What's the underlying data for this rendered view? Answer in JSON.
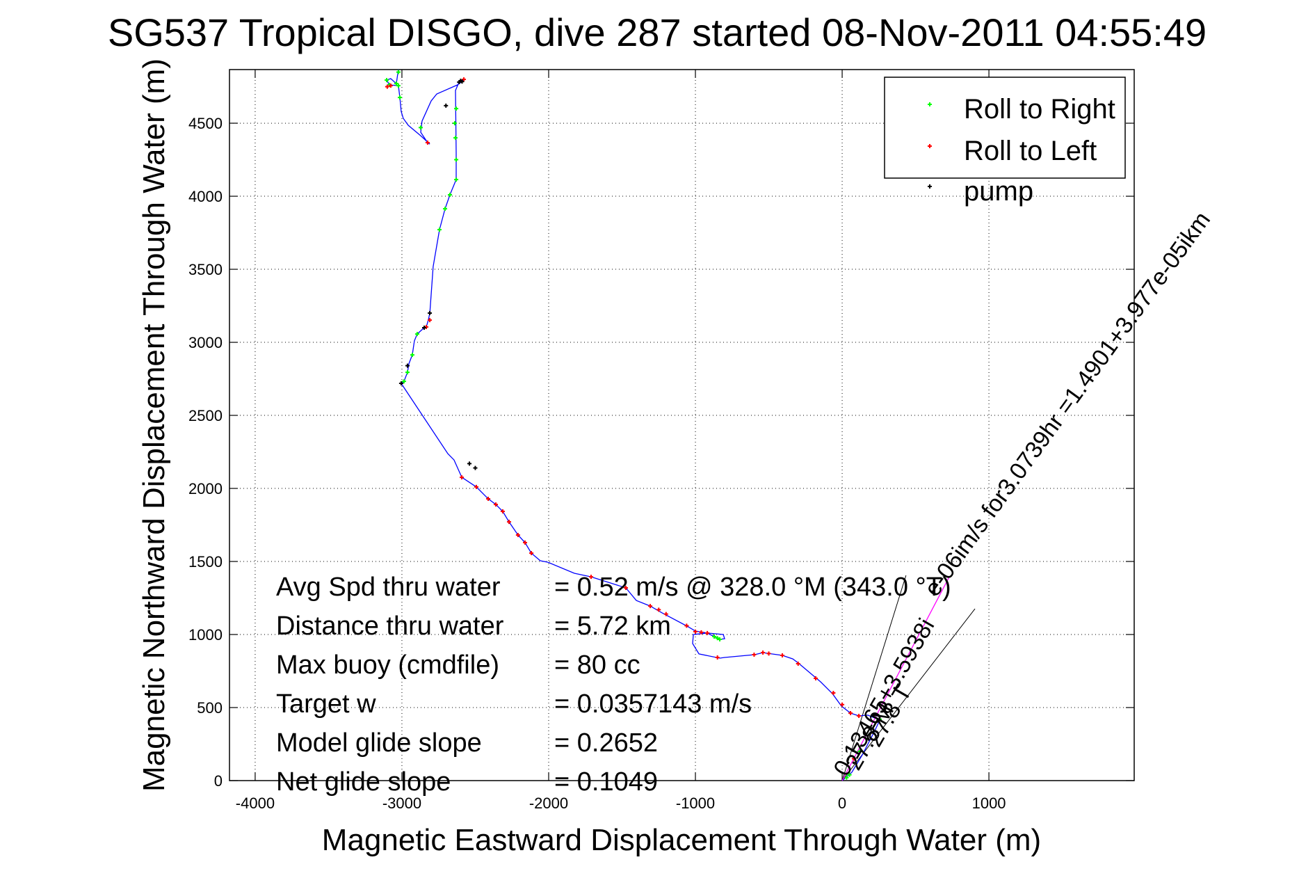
{
  "chart_data": {
    "type": "line",
    "title": "SG537 Tropical DISGO, dive 287 started 08-Nov-2011 04:55:49",
    "xlabel": "Magnetic Eastward Displacement Through Water (m)",
    "ylabel": "Magnetic Northward Displacement Through Water (m)",
    "xlim": [
      -4175,
      1990
    ],
    "ylim": [
      0,
      4867
    ],
    "grid": true,
    "xticks": [
      -4000,
      -3000,
      -2000,
      -1000,
      0,
      1000
    ],
    "yticks": [
      0,
      500,
      1000,
      1500,
      2000,
      2500,
      3000,
      3500,
      4000,
      4500
    ],
    "legend": {
      "placement": "top-right",
      "entries": [
        {
          "label": "Roll to Right",
          "color": "#00ff00",
          "marker": "+"
        },
        {
          "label": "Roll to Left",
          "color": "#ff0000",
          "marker": "+"
        },
        {
          "label": "pump",
          "color": "#000000",
          "marker": "+"
        }
      ]
    },
    "series": [
      {
        "name": "track",
        "color": "#0000ff",
        "x": [
          0,
          66,
          137,
          223,
          256,
          175,
          114,
          57,
          -5,
          -66,
          -147,
          -299,
          -336,
          -408,
          -540,
          -597,
          -801,
          -834,
          -976,
          -1019,
          -1014,
          -919,
          -810,
          -801,
          -834,
          -872,
          -919,
          -1000,
          -1057,
          -1227,
          -1308,
          -1403,
          -1474,
          -1711,
          -1825,
          -2005,
          -2057,
          -2118,
          -2161,
          -2209,
          -2270,
          -2313,
          -2360,
          -2412,
          -2493,
          -2592,
          -2645,
          -2687,
          -3005,
          -2986,
          -2962,
          -2953,
          -2929,
          -2915,
          -2896,
          -2848,
          -2834,
          -2820,
          -2810,
          -2787,
          -2744,
          -2706,
          -2673,
          -2630,
          -2630,
          -2635,
          -2611,
          -2578,
          -2621,
          -2763,
          -2801,
          -2863,
          -2872,
          -2825,
          -2810,
          -2872,
          -2957,
          -2991,
          -3005,
          -3014,
          -3024,
          -3085,
          -3104,
          -3076,
          -3038,
          -3024
        ],
        "y": [
          0,
          57,
          176,
          343,
          414,
          448,
          443,
          462,
          510,
          595,
          676,
          805,
          833,
          857,
          876,
          862,
          843,
          838,
          867,
          938,
          1000,
          1010,
          1000,
          971,
          967,
          986,
          1010,
          1024,
          1057,
          1148,
          1195,
          1233,
          1319,
          1395,
          1419,
          1495,
          1505,
          1557,
          1629,
          1681,
          1771,
          1843,
          1890,
          1929,
          2010,
          2076,
          2195,
          2238,
          2719,
          2733,
          2795,
          2852,
          2914,
          3010,
          3057,
          3100,
          3105,
          3152,
          3200,
          3519,
          3771,
          3914,
          4010,
          4114,
          4295,
          4724,
          4781,
          4795,
          4762,
          4700,
          4652,
          4514,
          4438,
          4367,
          4357,
          4414,
          4486,
          4533,
          4581,
          4676,
          4757,
          4762,
          4795,
          4805,
          4771,
          4867
        ]
      },
      {
        "name": "Roll to Right",
        "color": "#00ff00",
        "x": [
          30,
          50,
          256,
          120,
          -834,
          -850,
          -872,
          -2986,
          -2962,
          -2929,
          -2896,
          -2630,
          -2630,
          -2635,
          -2640,
          -2673,
          -2706,
          -2744,
          -2630,
          -3014,
          -3024,
          -3085,
          -3104,
          -3038,
          -3024,
          -2872
        ],
        "y": [
          20,
          40,
          420,
          200,
          967,
          975,
          986,
          2733,
          2795,
          2914,
          3057,
          4114,
          4250,
          4400,
          4500,
          4010,
          3914,
          3771,
          4600,
          4676,
          4757,
          4762,
          4795,
          4771,
          4850,
          4470
        ]
      },
      {
        "name": "Roll to Left",
        "color": "#ff0000",
        "x": [
          80,
          114,
          57,
          0,
          -60,
          -180,
          -300,
          -408,
          -500,
          -540,
          -600,
          -850,
          -919,
          -960,
          -1000,
          -1060,
          -1200,
          -1250,
          -1308,
          -1474,
          -1711,
          -2118,
          -2161,
          -2209,
          -2270,
          -2313,
          -2360,
          -2412,
          -2493,
          -2592,
          -2848,
          -2834,
          -2810,
          -2825,
          -2578,
          -3076,
          -3100
        ],
        "y": [
          150,
          443,
          462,
          520,
          600,
          700,
          800,
          857,
          870,
          876,
          862,
          843,
          1010,
          1015,
          1020,
          1060,
          1140,
          1170,
          1195,
          1319,
          1395,
          1557,
          1629,
          1681,
          1771,
          1843,
          1890,
          1929,
          2010,
          2076,
          3100,
          3105,
          3152,
          4367,
          4800,
          4757,
          4750
        ]
      },
      {
        "name": "pump",
        "color": "#000000",
        "x": [
          -2610,
          -2540,
          -2500,
          -2848,
          -2810,
          -3005,
          -2962,
          -2600,
          -2700,
          -2590
        ],
        "y": [
          4781,
          2170,
          2140,
          3100,
          3200,
          2719,
          2840,
          4790,
          4620,
          4785
        ]
      },
      {
        "name": "average-heading",
        "color": "#ff00ff",
        "x": [
          0,
          730
        ],
        "y": [
          0,
          1395
        ]
      }
    ],
    "wedge_lines": [
      {
        "x": [
          0,
          435
        ],
        "y": [
          0,
          1405
        ]
      },
      {
        "x": [
          0,
          905
        ],
        "y": [
          0,
          1176
        ]
      }
    ],
    "annotations": {
      "stats": [
        {
          "label": "Avg Spd thru water",
          "value": "=  0.52 m/s @ 328.0 °M (343.0 °T)"
        },
        {
          "label": "Distance thru water",
          "value": "=  5.72 km"
        },
        {
          "label": "Max buoy (cmdfile)",
          "value": "= 80 cc"
        },
        {
          "label": "Target w",
          "value": "= 0.0357143 m/s"
        },
        {
          "label": "Model glide slope",
          "value": "= 0.2652"
        },
        {
          "label": "Net glide slope",
          "value": "= 0.1049"
        }
      ],
      "rotated": [
        {
          "text": "0.13465+3.5938i",
          "x": 30,
          "y": 20,
          "angle": 60
        },
        {
          "text": "27.8 M",
          "x": 110,
          "y": 60,
          "angle": 60
        },
        {
          "text": "27.8 T",
          "x": 250,
          "y": 220,
          "angle": 60
        },
        {
          "text": "e-06im/s for3.0739hr =1.4901+3.977e-05ikm",
          "x": 640,
          "y": 1250,
          "angle": 54
        }
      ]
    }
  }
}
